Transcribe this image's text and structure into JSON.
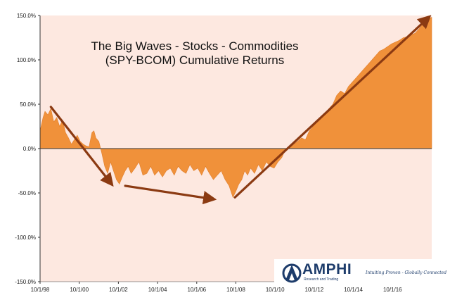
{
  "chart_data": {
    "type": "area",
    "title_lines": [
      "The Big Waves - Stocks - Commodities",
      "(SPY-BCOM) Cumulative Returns"
    ],
    "y_ticks": [
      "150.0%",
      "100.0%",
      "50.0%",
      "0.0%",
      "-50.0%",
      "-100.0%",
      "-150.0%"
    ],
    "y_tick_values": [
      150,
      100,
      50,
      0,
      -50,
      -100,
      -150
    ],
    "x_ticks": [
      "10/1/98",
      "10/1/00",
      "10/1/02",
      "10/1/04",
      "10/1/06",
      "10/1/08",
      "10/1/10",
      "10/1/12",
      "10/1/14",
      "10/1/16"
    ],
    "x_tick_values": [
      1998.75,
      2000.75,
      2002.75,
      2004.75,
      2006.75,
      2008.75,
      2010.75,
      2012.75,
      2014.75,
      2016.75
    ],
    "xlim": [
      1998.75,
      2018.75
    ],
    "ylim": [
      -150,
      150
    ],
    "grid": false,
    "fill_color": "#f0913a",
    "plot_background": "#fde8e0",
    "arrow_color": "#8b3a12",
    "series": [
      {
        "x": [
          1998.75,
          1998.9,
          1999.0,
          1999.15,
          1999.3,
          1999.45,
          1999.6,
          1999.75,
          1999.9,
          2000.05,
          2000.2,
          2000.35,
          2000.5,
          2000.65,
          2000.8,
          2000.95,
          2001.1,
          2001.25,
          2001.4,
          2001.5,
          2001.6,
          2001.75,
          2001.9,
          2002.05,
          2002.2,
          2002.35,
          2002.5,
          2002.65,
          2002.8,
          2002.95,
          2003.1,
          2003.25,
          2003.4,
          2003.6,
          2003.8,
          2004.0,
          2004.2,
          2004.4,
          2004.6,
          2004.8,
          2005.0,
          2005.2,
          2005.4,
          2005.6,
          2005.8,
          2006.0,
          2006.2,
          2006.4,
          2006.6,
          2006.8,
          2007.0,
          2007.2,
          2007.4,
          2007.6,
          2007.8,
          2008.0,
          2008.2,
          2008.4,
          2008.6,
          2008.75,
          2008.9,
          2009.05,
          2009.2,
          2009.35,
          2009.5,
          2009.7,
          2009.9,
          2010.1,
          2010.3,
          2010.5,
          2010.7,
          2010.9,
          2011.1,
          2011.3,
          2011.5,
          2011.7,
          2011.9,
          2012.1,
          2012.3,
          2012.5,
          2012.7,
          2012.9,
          2013.1,
          2013.3,
          2013.5,
          2013.7,
          2013.9,
          2014.1,
          2014.3,
          2014.5,
          2014.7,
          2014.9,
          2015.1,
          2015.3,
          2015.5,
          2015.7,
          2015.9,
          2016.1,
          2016.3,
          2016.5,
          2016.7,
          2016.9,
          2017.1,
          2017.3,
          2017.5,
          2017.7,
          2017.9,
          2018.1,
          2018.3,
          2018.5,
          2018.75
        ],
        "y": [
          20,
          35,
          42,
          38,
          45,
          30,
          35,
          25,
          32,
          18,
          12,
          5,
          10,
          15,
          8,
          5,
          3,
          2,
          18,
          20,
          12,
          8,
          -5,
          -20,
          -28,
          -15,
          -25,
          -35,
          -40,
          -32,
          -25,
          -20,
          -28,
          -22,
          -15,
          -30,
          -28,
          -20,
          -30,
          -25,
          -32,
          -25,
          -22,
          -30,
          -20,
          -25,
          -28,
          -18,
          -25,
          -22,
          -30,
          -20,
          -28,
          -35,
          -30,
          -25,
          -35,
          -42,
          -55,
          -48,
          -40,
          -35,
          -25,
          -30,
          -22,
          -28,
          -18,
          -25,
          -15,
          -20,
          -22,
          -15,
          -10,
          0,
          2,
          5,
          8,
          12,
          10,
          20,
          25,
          30,
          35,
          40,
          45,
          50,
          60,
          65,
          62,
          70,
          75,
          80,
          85,
          90,
          95,
          100,
          105,
          110,
          112,
          115,
          118,
          120,
          122,
          125,
          126,
          128,
          130,
          135,
          140,
          145,
          148
        ]
      }
    ],
    "arrows": [
      {
        "from": [
          1999.3,
          47
        ],
        "to": [
          2002.4,
          -40
        ]
      },
      {
        "from": [
          2003.1,
          -42
        ],
        "to": [
          2007.6,
          -57
        ]
      },
      {
        "from": [
          2008.7,
          -55
        ],
        "to": [
          2018.6,
          148
        ]
      }
    ]
  },
  "logo": {
    "name": "AMPHI",
    "subtitle": "Research and Trading",
    "tagline": "Intuiting Proven - Globally Connected"
  }
}
